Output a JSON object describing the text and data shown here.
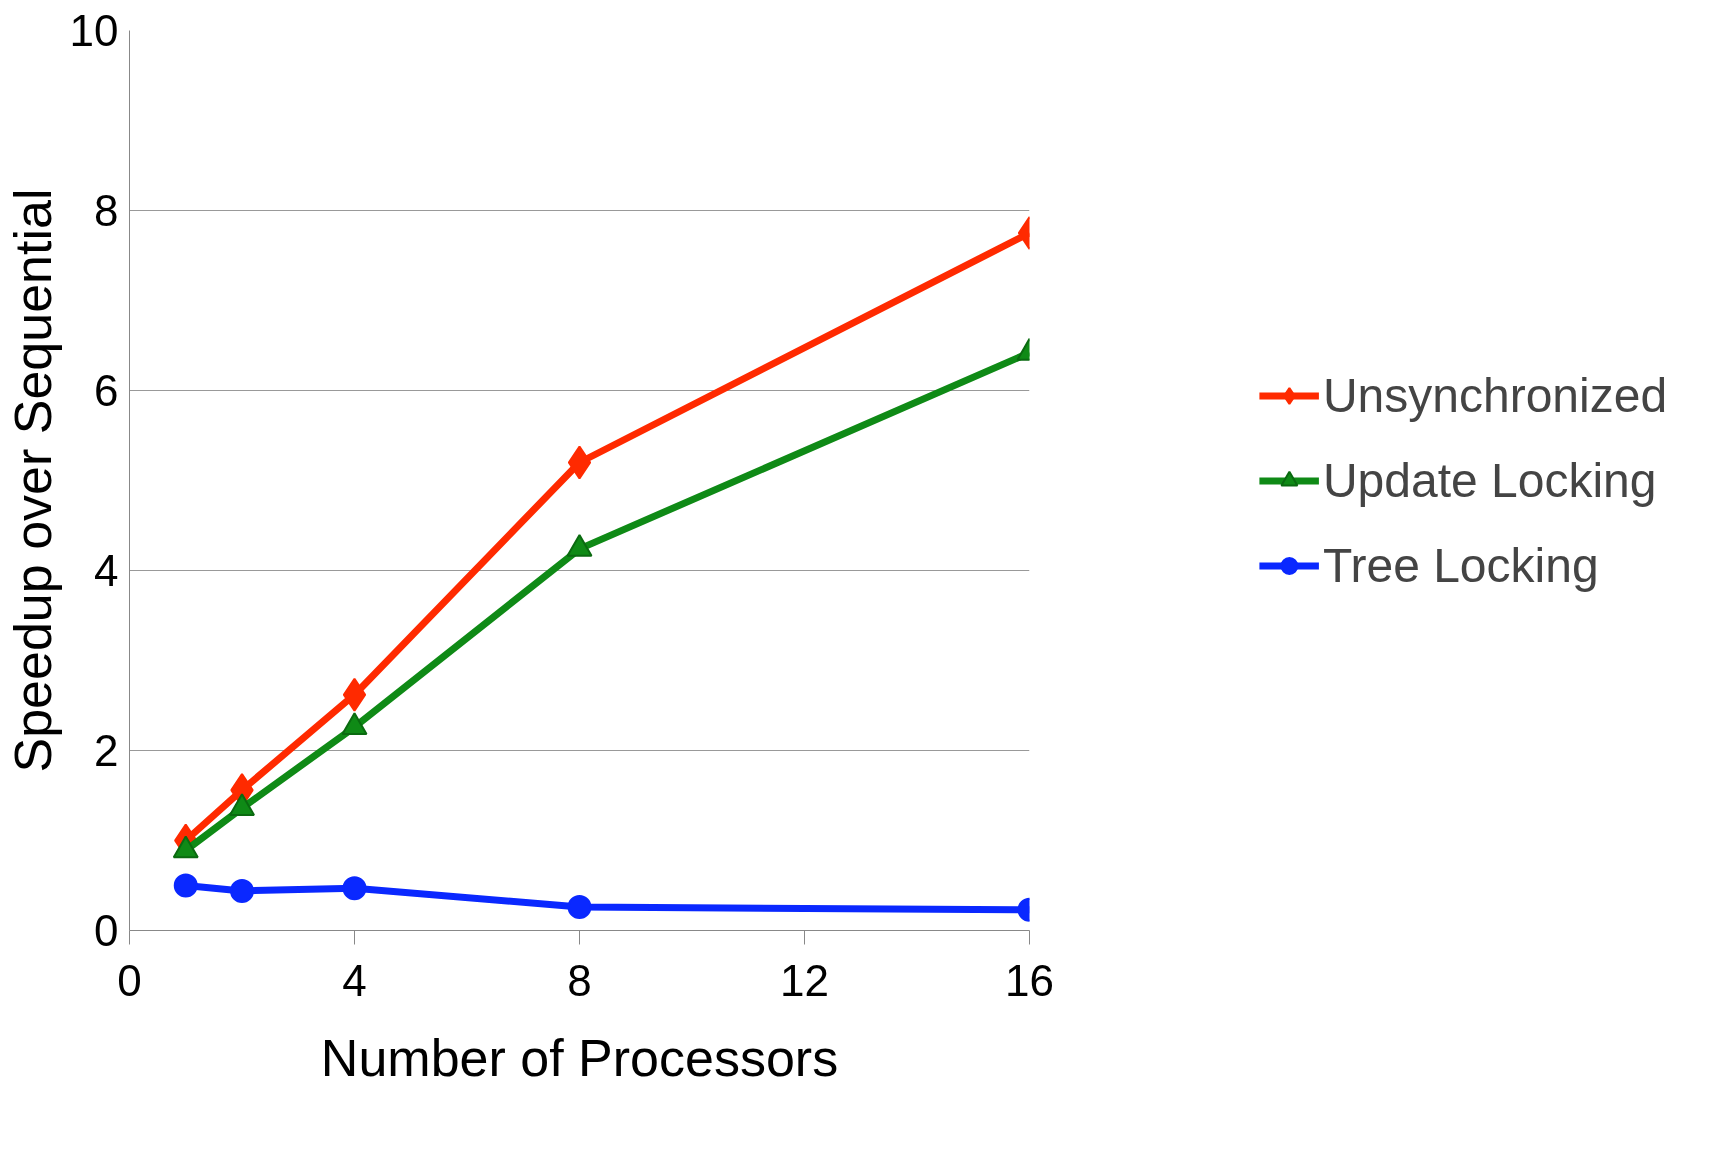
{
  "chart_data": {
    "type": "line",
    "xlabel": "Number of Processors",
    "ylabel": "Speedup over Sequential",
    "x": [
      1,
      2,
      4,
      8,
      16
    ],
    "series": [
      {
        "name": "Unsynchronized",
        "color": "#ff2a00",
        "marker": "diamond",
        "values": [
          1.0,
          1.56,
          2.62,
          5.2,
          7.75
        ]
      },
      {
        "name": "Update Locking",
        "color": "#0f8a16",
        "marker": "triangle",
        "values": [
          0.89,
          1.36,
          2.26,
          4.24,
          6.42
        ]
      },
      {
        "name": "Tree Locking",
        "color": "#0a28ff",
        "marker": "circle",
        "values": [
          0.5,
          0.44,
          0.47,
          0.26,
          0.23
        ]
      }
    ],
    "xlim": [
      0,
      16
    ],
    "ylim": [
      0,
      10
    ],
    "xticks": [
      0,
      4,
      8,
      12,
      16
    ],
    "yticks": [
      0,
      2,
      4,
      6,
      8,
      10
    ],
    "grid": "y",
    "legend": "right",
    "line_style": "solid"
  }
}
